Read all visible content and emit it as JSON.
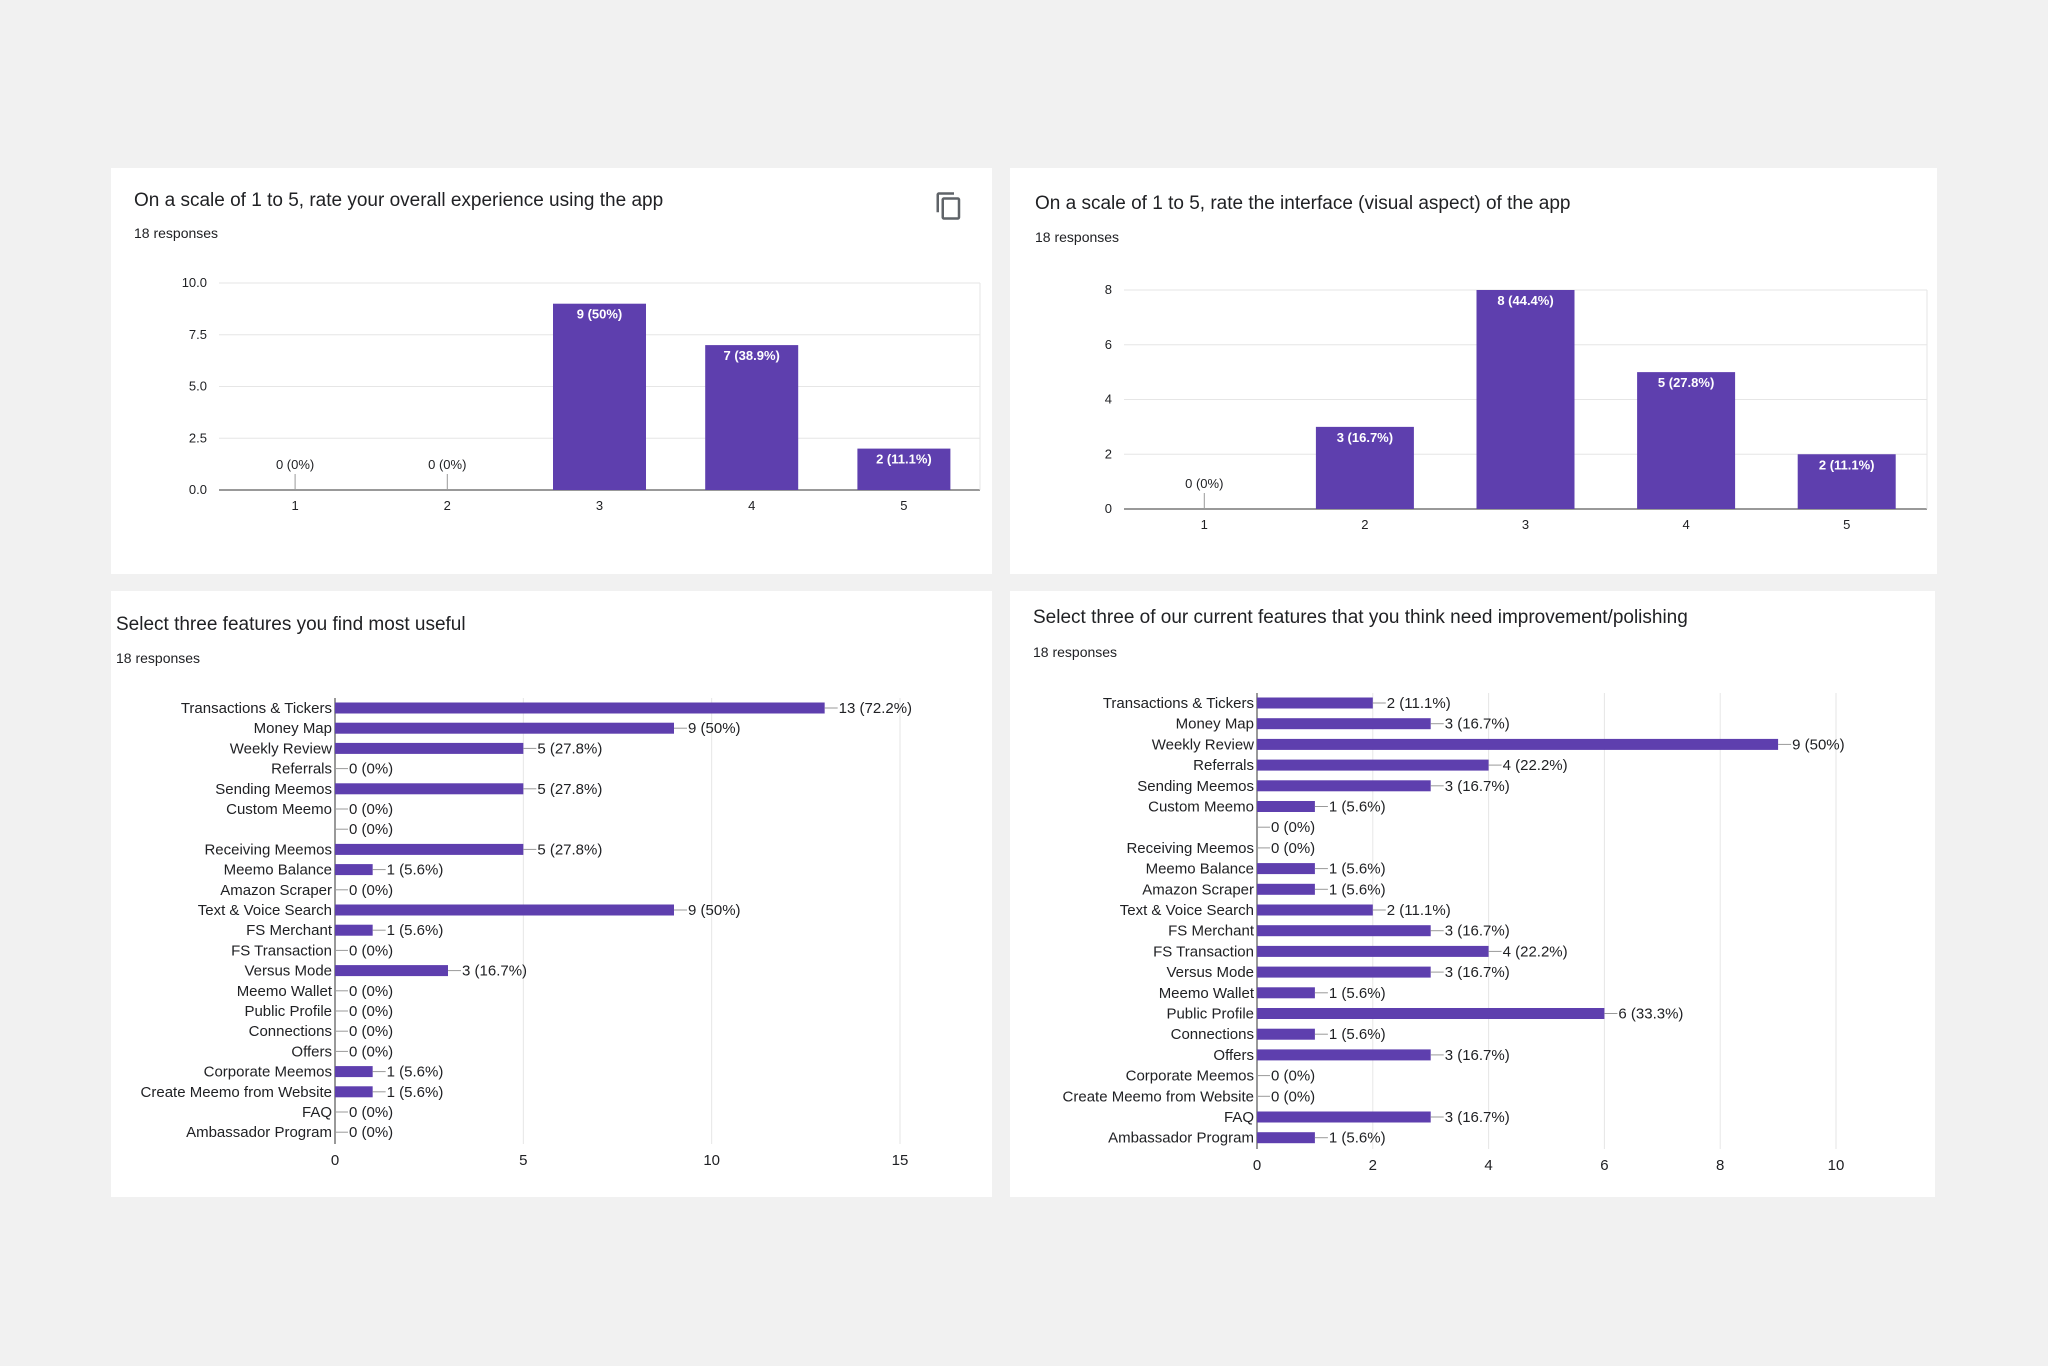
{
  "colors": {
    "bar": "#5e3fae",
    "grid": "#e6e6e6",
    "axis": "#333333",
    "text": "#202124"
  },
  "cards": [
    {
      "title": "On a scale of 1 to 5, rate your overall experience using the app",
      "responses": "18 responses",
      "copy_icon": "copy-icon"
    },
    {
      "title": "On a scale of 1 to 5, rate the interface (visual aspect) of the app",
      "responses": "18 responses"
    },
    {
      "title": "Select three features you find most useful",
      "responses": "18 responses"
    },
    {
      "title": "Select three of our current features that you think need improvement/polishing",
      "responses": "18 responses"
    }
  ],
  "chart_data": [
    {
      "type": "bar",
      "title": "On a scale of 1 to 5, rate your overall experience using the app",
      "categories": [
        "1",
        "2",
        "3",
        "4",
        "5"
      ],
      "values": [
        0,
        0,
        9,
        7,
        2
      ],
      "labels": [
        "0 (0%)",
        "0 (0%)",
        "9 (50%)",
        "7 (38.9%)",
        "2 (11.1%)"
      ],
      "yticks": [
        "0.0",
        "2.5",
        "5.0",
        "7.5",
        "10.0"
      ],
      "ylim": [
        0,
        10
      ]
    },
    {
      "type": "bar",
      "title": "On a scale of 1 to 5, rate the interface (visual aspect) of the app",
      "categories": [
        "1",
        "2",
        "3",
        "4",
        "5"
      ],
      "values": [
        0,
        3,
        8,
        5,
        2
      ],
      "labels": [
        "0 (0%)",
        "3 (16.7%)",
        "8 (44.4%)",
        "5 (27.8%)",
        "2 (11.1%)"
      ],
      "yticks": [
        "0",
        "2",
        "4",
        "6",
        "8"
      ],
      "ylim": [
        0,
        8
      ]
    },
    {
      "type": "bar",
      "orientation": "horizontal",
      "title": "Select three features you find most useful",
      "categories": [
        "Transactions & Tickers",
        "Money Map",
        "Weekly Review",
        "Referrals",
        "Sending Meemos",
        "Custom Meemo",
        "",
        "Receiving Meemos",
        "Meemo Balance",
        "Amazon Scraper",
        "Text & Voice Search",
        "FS Merchant",
        "FS Transaction",
        "Versus Mode",
        "Meemo Wallet",
        "Public Profile",
        "Connections",
        "Offers",
        "Corporate Meemos",
        "Create Meemo from Website",
        "FAQ",
        "Ambassador Program"
      ],
      "values": [
        13,
        9,
        5,
        0,
        5,
        0,
        0,
        5,
        1,
        0,
        9,
        1,
        0,
        3,
        0,
        0,
        0,
        0,
        1,
        1,
        0,
        0
      ],
      "labels": [
        "13 (72.2%)",
        "9 (50%)",
        "5 (27.8%)",
        "0 (0%)",
        "5 (27.8%)",
        "0 (0%)",
        "0 (0%)",
        "5 (27.8%)",
        "1 (5.6%)",
        "0 (0%)",
        "9 (50%)",
        "1 (5.6%)",
        "0 (0%)",
        "3 (16.7%)",
        "0 (0%)",
        "0 (0%)",
        "0 (0%)",
        "0 (0%)",
        "1 (5.6%)",
        "1 (5.6%)",
        "0 (0%)",
        "0 (0%)"
      ],
      "xticks": [
        "0",
        "5",
        "10",
        "15"
      ],
      "xlim": [
        0,
        15
      ]
    },
    {
      "type": "bar",
      "orientation": "horizontal",
      "title": "Select three of our current features that you think need improvement/polishing",
      "categories": [
        "Transactions & Tickers",
        "Money Map",
        "Weekly Review",
        "Referrals",
        "Sending Meemos",
        "Custom Meemo",
        "",
        "Receiving Meemos",
        "Meemo Balance",
        "Amazon Scraper",
        "Text & Voice Search",
        "FS Merchant",
        "FS Transaction",
        "Versus Mode",
        "Meemo Wallet",
        "Public Profile",
        "Connections",
        "Offers",
        "Corporate Meemos",
        "Create Meemo from Website",
        "FAQ",
        "Ambassador Program"
      ],
      "values": [
        2,
        3,
        9,
        4,
        3,
        1,
        0,
        0,
        1,
        1,
        2,
        3,
        4,
        3,
        1,
        6,
        1,
        3,
        0,
        0,
        3,
        1
      ],
      "labels": [
        "2 (11.1%)",
        "3 (16.7%)",
        "9 (50%)",
        "4 (22.2%)",
        "3 (16.7%)",
        "1 (5.6%)",
        "0 (0%)",
        "0 (0%)",
        "1 (5.6%)",
        "1 (5.6%)",
        "2 (11.1%)",
        "3 (16.7%)",
        "4 (22.2%)",
        "3 (16.7%)",
        "1 (5.6%)",
        "6 (33.3%)",
        "1 (5.6%)",
        "3 (16.7%)",
        "0 (0%)",
        "0 (0%)",
        "3 (16.7%)",
        "1 (5.6%)"
      ],
      "xticks": [
        "0",
        "2",
        "4",
        "6",
        "8",
        "10"
      ],
      "xlim": [
        0,
        10
      ]
    }
  ]
}
